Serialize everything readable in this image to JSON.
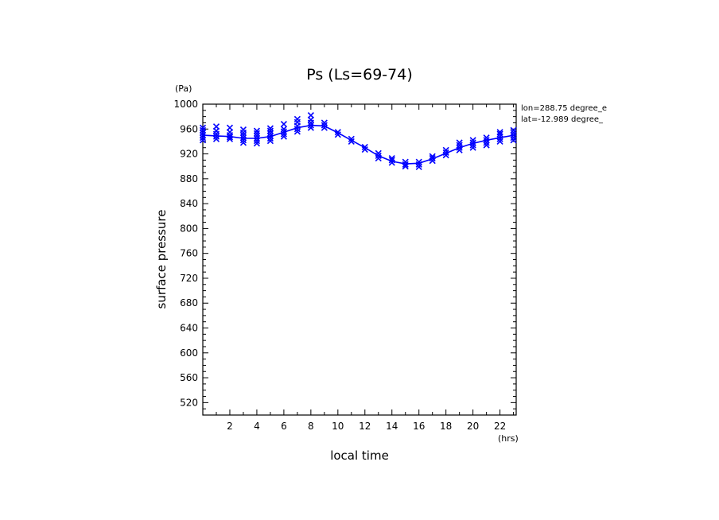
{
  "chart_data": {
    "type": "scatter",
    "title": "Ps (Ls=69-74)",
    "xlabel": "local time",
    "ylabel": "surface pressure",
    "x_unit": "(hrs)",
    "y_unit": "(Pa)",
    "xlim": [
      0,
      23.2
    ],
    "ylim": [
      500,
      1000
    ],
    "x_ticks": [
      2,
      4,
      6,
      8,
      10,
      12,
      14,
      16,
      18,
      20,
      22
    ],
    "y_ticks": [
      520,
      560,
      600,
      640,
      680,
      720,
      760,
      800,
      840,
      880,
      920,
      960,
      1000
    ],
    "grid": false,
    "annotations": [
      "lon=288.75 degree_e",
      "lat=-12.989 degree_"
    ],
    "series": [
      {
        "kind": "line",
        "x": [
          0,
          1,
          2,
          3,
          4,
          5,
          6,
          7,
          8,
          9,
          10,
          11,
          12,
          13,
          14,
          15,
          16,
          17,
          18,
          19,
          20,
          21,
          22,
          23
        ],
        "values": [
          950,
          949,
          948,
          945,
          945,
          948,
          955,
          962,
          966,
          965,
          954,
          942,
          930,
          917,
          908,
          904,
          905,
          912,
          921,
          930,
          937,
          942,
          946,
          950
        ],
        "color": "#0000ff"
      },
      {
        "kind": "scatter",
        "marker": "x",
        "color": "#0000ff",
        "points": [
          [
            0,
            942
          ],
          [
            0,
            946
          ],
          [
            0,
            950
          ],
          [
            0,
            954
          ],
          [
            0,
            958
          ],
          [
            0,
            962
          ],
          [
            1,
            944
          ],
          [
            1,
            948
          ],
          [
            1,
            952
          ],
          [
            1,
            957
          ],
          [
            1,
            964
          ],
          [
            2,
            944
          ],
          [
            2,
            947
          ],
          [
            2,
            950
          ],
          [
            2,
            955
          ],
          [
            2,
            962
          ],
          [
            3,
            938
          ],
          [
            3,
            942
          ],
          [
            3,
            946
          ],
          [
            3,
            950
          ],
          [
            3,
            954
          ],
          [
            3,
            959
          ],
          [
            4,
            937
          ],
          [
            4,
            941
          ],
          [
            4,
            945
          ],
          [
            4,
            949
          ],
          [
            4,
            953
          ],
          [
            4,
            957
          ],
          [
            5,
            941
          ],
          [
            5,
            945
          ],
          [
            5,
            949
          ],
          [
            5,
            953
          ],
          [
            5,
            957
          ],
          [
            5,
            961
          ],
          [
            6,
            948
          ],
          [
            6,
            952
          ],
          [
            6,
            956
          ],
          [
            6,
            960
          ],
          [
            6,
            968
          ],
          [
            7,
            956
          ],
          [
            7,
            960
          ],
          [
            7,
            965
          ],
          [
            7,
            971
          ],
          [
            7,
            976
          ],
          [
            8,
            962
          ],
          [
            8,
            966
          ],
          [
            8,
            970
          ],
          [
            8,
            975
          ],
          [
            8,
            982
          ],
          [
            9,
            962
          ],
          [
            9,
            966
          ],
          [
            9,
            970
          ],
          [
            10,
            951
          ],
          [
            10,
            955
          ],
          [
            11,
            940
          ],
          [
            11,
            944
          ],
          [
            12,
            927
          ],
          [
            12,
            931
          ],
          [
            13,
            913
          ],
          [
            13,
            917
          ],
          [
            13,
            921
          ],
          [
            14,
            906
          ],
          [
            14,
            910
          ],
          [
            14,
            913
          ],
          [
            15,
            900
          ],
          [
            15,
            903
          ],
          [
            15,
            907
          ],
          [
            16,
            899
          ],
          [
            16,
            903
          ],
          [
            16,
            907
          ],
          [
            17,
            909
          ],
          [
            17,
            913
          ],
          [
            17,
            916
          ],
          [
            18,
            918
          ],
          [
            18,
            922
          ],
          [
            18,
            926
          ],
          [
            19,
            926
          ],
          [
            19,
            930
          ],
          [
            19,
            934
          ],
          [
            19,
            938
          ],
          [
            20,
            930
          ],
          [
            20,
            934
          ],
          [
            20,
            938
          ],
          [
            20,
            942
          ],
          [
            21,
            934
          ],
          [
            21,
            938
          ],
          [
            21,
            942
          ],
          [
            21,
            946
          ],
          [
            22,
            940
          ],
          [
            22,
            944
          ],
          [
            22,
            948
          ],
          [
            22,
            952
          ],
          [
            22,
            955
          ],
          [
            23,
            942
          ],
          [
            23,
            946
          ],
          [
            23,
            950
          ],
          [
            23,
            954
          ],
          [
            23,
            958
          ]
        ]
      }
    ]
  }
}
